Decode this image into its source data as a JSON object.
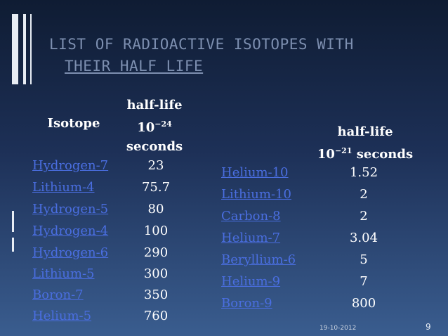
{
  "slide": {
    "title_line1": "LIST OF RADIOACTIVE ISOTOPES WITH",
    "title_line2": "THEIR HALF LIFE",
    "date": "19-10-2012",
    "page_number": "9"
  },
  "left_table": {
    "header_isotope": "Isotope",
    "header_halflife_line1": "half-life",
    "header_halflife_base": "10",
    "header_halflife_exp": "−24",
    "header_halflife_line3": "seconds",
    "rows": [
      {
        "isotope": "Hydrogen-7",
        "value": "23"
      },
      {
        "isotope": "Lithium-4",
        "value": "75.7"
      },
      {
        "isotope": "Hydrogen-5",
        "value": "80"
      },
      {
        "isotope": "Hydrogen-4",
        "value": "100"
      },
      {
        "isotope": "Hydrogen-6",
        "value": "290"
      },
      {
        "isotope": "Lithium-5",
        "value": "300"
      },
      {
        "isotope": "Boron-7",
        "value": "350"
      },
      {
        "isotope": "Helium-5",
        "value": "760"
      }
    ]
  },
  "right_table": {
    "header_halflife_line1": "half-life",
    "header_halflife_base": "10",
    "header_halflife_exp": "−21",
    "header_halflife_unit": " seconds",
    "rows": [
      {
        "isotope": "Helium-10",
        "value": "1.52"
      },
      {
        "isotope": "Lithium-10",
        "value": "2"
      },
      {
        "isotope": "Carbon-8",
        "value": "2"
      },
      {
        "isotope": "Helium-7",
        "value": "3.04"
      },
      {
        "isotope": "Beryllium-6",
        "value": "5"
      },
      {
        "isotope": "Helium-9",
        "value": "7"
      },
      {
        "isotope": "Boron-9",
        "value": "800"
      }
    ]
  }
}
